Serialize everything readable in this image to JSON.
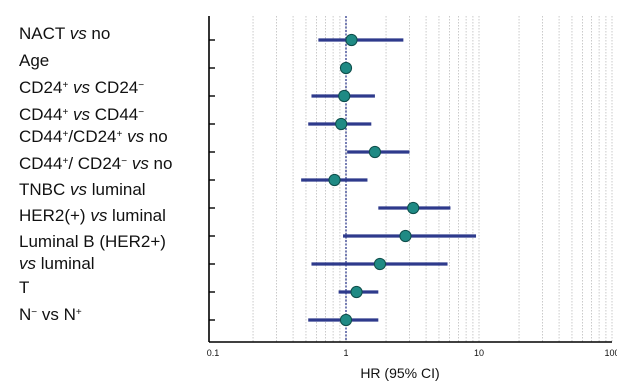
{
  "chart_data": {
    "type": "forest",
    "xlabel": "HR (95% CI)",
    "x_scale": "log",
    "xlim": [
      0.1,
      100
    ],
    "x_ticks": [
      "0.1",
      "1",
      "10",
      "100"
    ],
    "reference_line": 1,
    "grid": true,
    "colors": {
      "ci_line": "#2e3a8c",
      "point": "#1f8a84",
      "point_edge": "#0e4d4a"
    },
    "labels": [
      [
        "NACT ",
        "vs",
        " no"
      ],
      [
        "Age"
      ],
      [
        "CD24",
        "+",
        " ",
        "vs",
        " CD24",
        "−"
      ],
      [
        "CD44",
        "+",
        " ",
        "vs",
        " CD44",
        "−"
      ],
      [
        "CD44",
        "+",
        "/CD24",
        "+",
        " ",
        "vs",
        " no"
      ],
      [
        "CD44",
        "+",
        "/ CD24",
        "−",
        " ",
        "vs",
        " no"
      ],
      [
        "TNBC ",
        "vs",
        " luminal"
      ],
      [
        "HER2(+) ",
        "vs",
        " luminal"
      ],
      [
        "Luminal B (HER2+)"
      ],
      [
        "vs",
        " luminal"
      ],
      [
        "T"
      ],
      [
        "N",
        "−",
        " vs N",
        "+"
      ]
    ],
    "rows": [
      {
        "hr": 1.1,
        "lo": 0.62,
        "hi": 2.7
      },
      {
        "hr": 1.0,
        "lo": 0.97,
        "hi": 1.03
      },
      {
        "hr": 0.97,
        "lo": 0.55,
        "hi": 1.65
      },
      {
        "hr": 0.92,
        "lo": 0.52,
        "hi": 1.55
      },
      {
        "hr": 1.65,
        "lo": 1.02,
        "hi": 3.0
      },
      {
        "hr": 0.82,
        "lo": 0.46,
        "hi": 1.45
      },
      {
        "hr": 3.2,
        "lo": 1.75,
        "hi": 6.1
      },
      {
        "hr": 2.8,
        "lo": 0.95,
        "hi": 9.5
      },
      {
        "hr": 1.8,
        "lo": 0.55,
        "hi": 5.8
      },
      {
        "hr": 1.2,
        "lo": 0.88,
        "hi": 1.75
      },
      {
        "hr": 1.0,
        "lo": 0.52,
        "hi": 1.75
      }
    ]
  }
}
